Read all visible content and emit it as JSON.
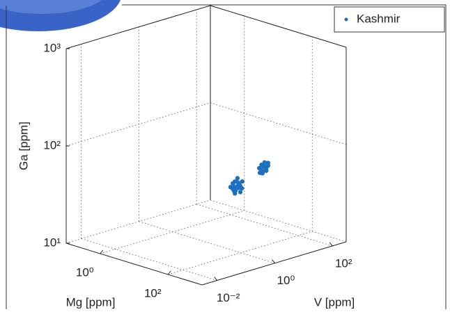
{
  "chart_data": {
    "type": "scatter3d",
    "xlabel": "Mg [ppm]",
    "ylabel": "V [ppm]",
    "zlabel": "Ga [ppm]",
    "xscale": "log",
    "yscale": "log",
    "zscale": "log",
    "xlim": [
      0.1,
      1000
    ],
    "ylim": [
      0.003,
      300
    ],
    "zlim": [
      10,
      1000
    ],
    "xticks": [
      {
        "value": 1,
        "label": "10⁰"
      },
      {
        "value": 100,
        "label": "10²"
      }
    ],
    "yticks": [
      {
        "value": 0.01,
        "label": "10⁻²"
      },
      {
        "value": 1,
        "label": "10⁰"
      },
      {
        "value": 100,
        "label": "10²"
      }
    ],
    "zticks": [
      {
        "value": 10,
        "label": "10¹"
      },
      {
        "value": 100,
        "label": "10²"
      },
      {
        "value": 1000,
        "label": "10³"
      }
    ],
    "grid": true,
    "legend": "upper right",
    "series": [
      {
        "name": "Kashmir",
        "color": "#1f6fbf",
        "x": [
          5,
          6,
          6.5,
          5.5,
          7,
          6,
          5,
          6,
          7,
          5.5,
          6.5,
          6,
          5,
          7,
          6,
          5.5,
          6.5,
          6,
          8,
          8,
          9,
          7.5,
          8.5,
          8,
          9,
          7,
          8,
          9.5,
          8,
          8.5,
          7.5,
          9
        ],
        "y": [
          15,
          18,
          20,
          22,
          25,
          17,
          20,
          24,
          19,
          16,
          28,
          21,
          18,
          22,
          26,
          19,
          15,
          23,
          100,
          120,
          130,
          110,
          140,
          90,
          150,
          100,
          130,
          120,
          110,
          160,
          140,
          100
        ],
        "z": [
          27,
          25,
          28,
          30,
          26,
          31,
          24,
          29,
          27,
          26,
          30,
          33,
          29,
          24,
          27,
          23,
          28,
          26,
          36,
          38,
          35,
          40,
          37,
          34,
          39,
          37,
          42,
          36,
          33,
          41,
          38,
          35
        ]
      }
    ]
  }
}
